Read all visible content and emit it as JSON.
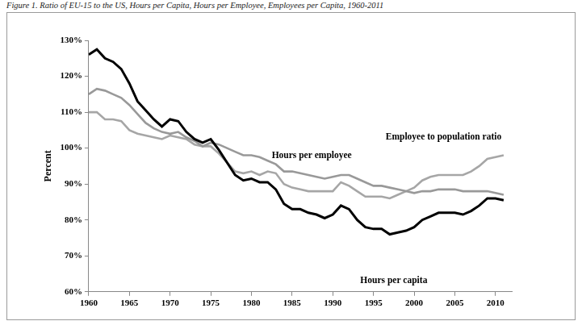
{
  "chart_data": {
    "type": "line",
    "title": "Figure 1. Ratio of EU-15 to the US, Hours per Capita, Hours per Employee, Employees per Capita, 1960-2011",
    "y_label": "Percent",
    "x": [
      1960,
      1961,
      1962,
      1963,
      1964,
      1965,
      1966,
      1967,
      1968,
      1969,
      1970,
      1971,
      1972,
      1973,
      1974,
      1975,
      1976,
      1977,
      1978,
      1979,
      1980,
      1981,
      1982,
      1983,
      1984,
      1985,
      1986,
      1987,
      1988,
      1989,
      1990,
      1991,
      1992,
      1993,
      1994,
      1995,
      1996,
      1997,
      1998,
      1999,
      2000,
      2001,
      2002,
      2003,
      2004,
      2005,
      2006,
      2007,
      2008,
      2009,
      2010,
      2011
    ],
    "series": [
      {
        "name": "Hours per capita",
        "color": "#000000",
        "values": [
          126,
          127.5,
          125,
          124,
          122,
          118,
          113,
          110.5,
          108,
          106,
          108,
          107.5,
          104.5,
          102.5,
          101.5,
          102.5,
          99.5,
          96,
          92.5,
          91,
          91.5,
          90.5,
          90.5,
          88.5,
          84.5,
          83,
          83,
          82,
          81.5,
          80.5,
          81.5,
          84,
          83,
          80,
          78,
          77.5,
          77.5,
          76,
          76.5,
          77,
          78,
          80,
          81,
          82,
          82,
          82,
          81.5,
          82.5,
          84,
          86,
          86,
          85.5
        ]
      },
      {
        "name": "Hours per employee",
        "color": "#999999",
        "values": [
          115,
          116.5,
          116,
          115,
          114,
          112,
          109.5,
          107,
          105.5,
          104.5,
          104,
          104.5,
          103,
          102,
          100.5,
          101.5,
          101,
          100,
          99,
          98,
          98,
          97.5,
          96.5,
          95.5,
          93.5,
          93.5,
          93,
          92.5,
          92,
          91.5,
          92,
          92.5,
          92.5,
          91.5,
          90.5,
          89.5,
          89.5,
          89,
          88.5,
          88,
          87.5,
          88,
          88,
          88.5,
          88.5,
          88.5,
          88,
          88,
          88,
          88,
          87.5,
          87
        ]
      },
      {
        "name": "Employee to population ratio",
        "color": "#a6a6a6",
        "values": [
          110,
          110,
          108,
          108,
          107.5,
          105,
          104,
          103.5,
          103,
          102.5,
          103.5,
          103,
          102.5,
          101,
          100.5,
          100.5,
          98.5,
          96,
          93.5,
          93,
          93.5,
          92.5,
          93.5,
          93,
          90,
          89,
          88.5,
          88,
          88,
          88,
          88,
          90.5,
          89.5,
          88,
          86.5,
          86.5,
          86.5,
          86,
          87,
          88,
          89,
          91,
          92,
          92.5,
          92.5,
          92.5,
          92.5,
          93.5,
          95,
          97,
          97.5,
          98
        ]
      }
    ],
    "annotations": [
      {
        "text": "Employee to population ratio",
        "x": 1996.5,
        "y": 103,
        "align": "left"
      },
      {
        "text": "Hours per employee",
        "x": 1982.5,
        "y": 98,
        "align": "left"
      },
      {
        "text": "Hours per capita",
        "x": 1997.5,
        "y": 63,
        "align": "center"
      }
    ],
    "xlim": [
      1960,
      2012
    ],
    "xticks": [
      1960,
      1965,
      1970,
      1975,
      1980,
      1985,
      1990,
      1995,
      2000,
      2005,
      2010
    ],
    "ylim": [
      60,
      130
    ],
    "yticks": [
      {
        "value": 60,
        "label": "60%"
      },
      {
        "value": 70,
        "label": "70%"
      },
      {
        "value": 80,
        "label": "80%"
      },
      {
        "value": 90,
        "label": "90%"
      },
      {
        "value": 100,
        "label": "100%"
      },
      {
        "value": 110,
        "label": "110%"
      },
      {
        "value": 120,
        "label": "120%"
      },
      {
        "value": 130,
        "label": "130%"
      }
    ],
    "grid": false
  }
}
